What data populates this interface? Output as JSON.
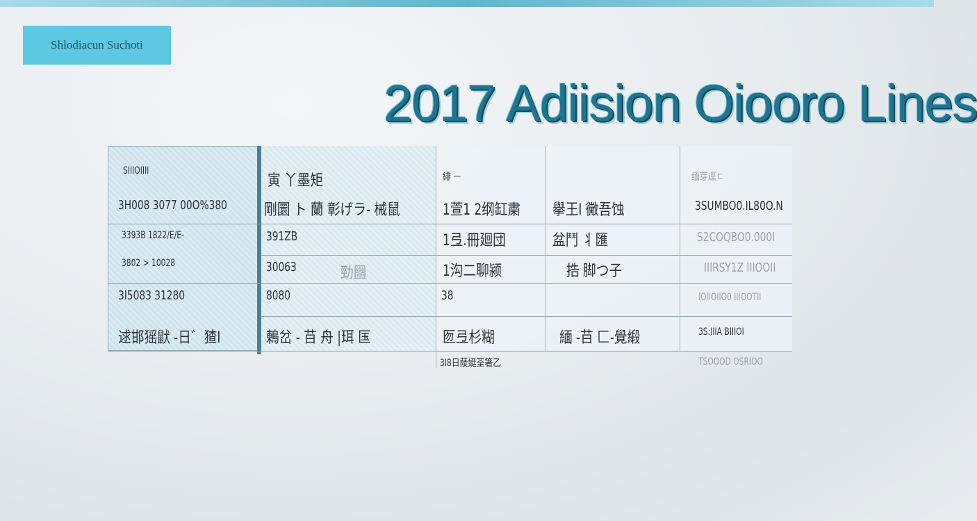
{
  "badge": {
    "label": "Shlodiacun Suchoti"
  },
  "title": "2017 Adiision Oiooro Lines",
  "table": {
    "header": [
      "SIIIOIIII",
      "寅 丫墨矩",
      "緋 ㅡ",
      "",
      "缅芽逕ㄷ"
    ],
    "rows": [
      [
        "3H008 3077 00O%380",
        "剛圜 ト 蘭 彰げラ- 械鼠",
        "1萱1 2纲缸粛",
        "擧王I 黴吾蚀",
        "3SUMBO0.IL80O.N"
      ],
      [
        "3393B 1822/E/E-",
        "391ZB",
        "1弖.冊廻団",
        "盆鬥 丬匯",
        "S2COQBO0.000I"
      ],
      [
        "3802 > 10028",
        "30063",
        "1沟二聊颍",
        "捁 脚つ子",
        "IIIRSY1Z IIIOOII"
      ],
      [
        "3I5083 31280",
        "8080",
        "38",
        "",
        "IOIIOIIO0 IIIOOTII"
      ],
      [
        "逑邯猺鼣  -日゛猹I",
        "鶇岔 - 䒤 舟 |珥  匤",
        "匢弖杉糊",
        "緬 -䒤 ⼕-覺緞",
        "3S:IIIA BIIIOI"
      ]
    ],
    "row3_mid": "勁圝",
    "footer": [
      "3I8日䔖娗荃箸乙",
      "TSOOOD OSRIOO"
    ]
  }
}
